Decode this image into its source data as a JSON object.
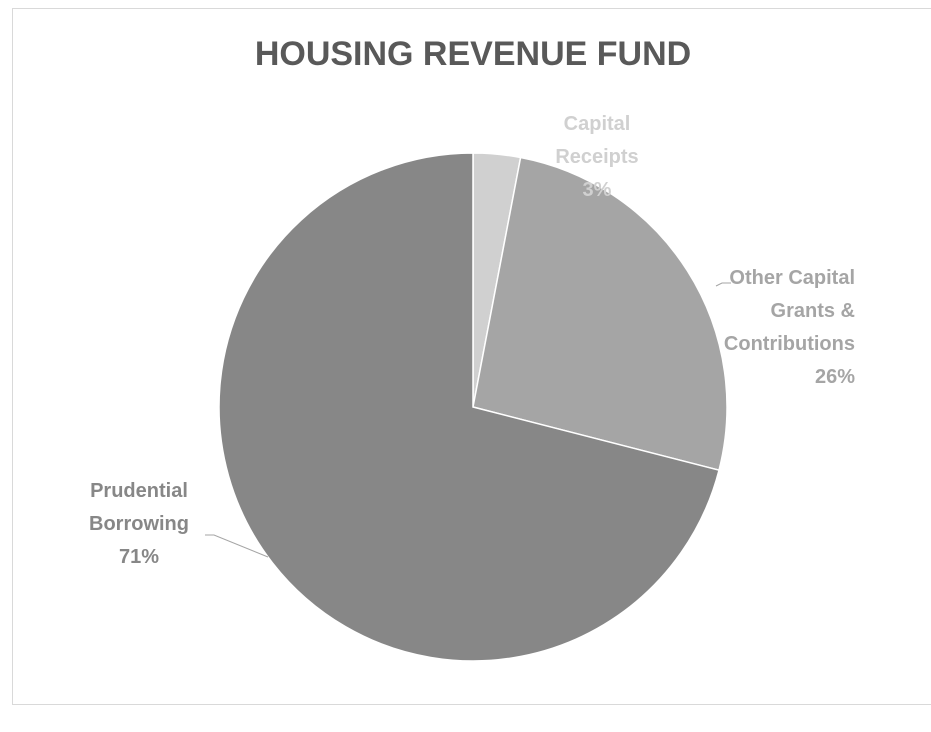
{
  "chart_data": {
    "type": "pie",
    "title": "HOUSING REVENUE FUND",
    "categories": [
      "Capital Receipts",
      "Other Capital Grants & Contributions",
      "Prudential Borrowing"
    ],
    "values": [
      3,
      26,
      71
    ],
    "value_labels": [
      "3%",
      "26%",
      "71%"
    ],
    "colors": [
      "#d0d0d0",
      "#a5a5a5",
      "#878787"
    ]
  }
}
